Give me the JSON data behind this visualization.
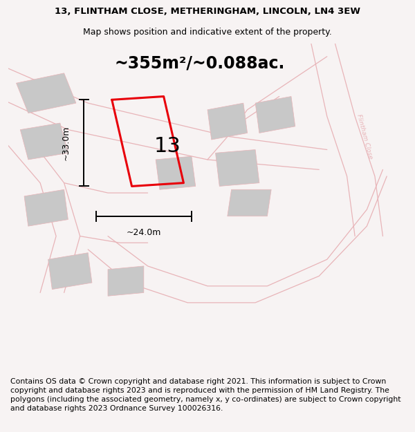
{
  "title_line1": "13, FLINTHAM CLOSE, METHERINGHAM, LINCOLN, LN4 3EW",
  "title_line2": "Map shows position and indicative extent of the property.",
  "area_text": "~355m²/~0.088ac.",
  "number_label": "13",
  "dim_width": "~24.0m",
  "dim_height": "~33.0m",
  "footer_text": "Contains OS data © Crown copyright and database right 2021. This information is subject to Crown copyright and database rights 2023 and is reproduced with the permission of HM Land Registry. The polygons (including the associated geometry, namely x, y co-ordinates) are subject to Crown copyright and database rights 2023 Ordnance Survey 100026316.",
  "bg_color": "#f7f3f3",
  "map_bg": "#faf6f6",
  "plot_color": "#e8000a",
  "light_pink": "#e8b4b8",
  "gray_fill": "#c8c8c8",
  "title_fontsize": 9.5,
  "subtitle_fontsize": 9.0,
  "footer_fontsize": 7.8,
  "area_fontsize": 17,
  "num_fontsize": 22,
  "dim_fontsize": 9
}
